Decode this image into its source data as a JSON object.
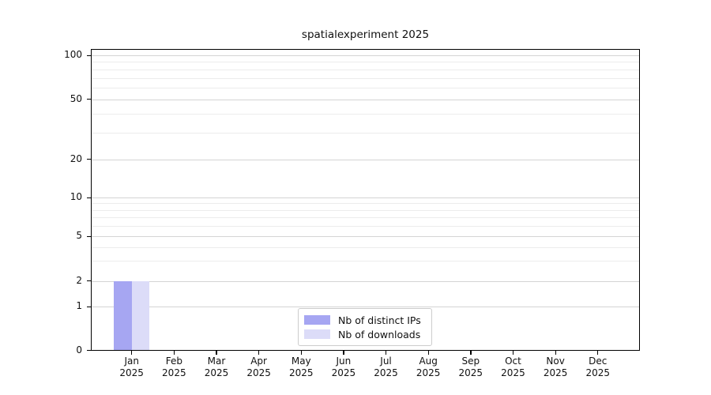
{
  "chart_data": {
    "type": "bar",
    "title": "spatialexperiment 2025",
    "categories": [
      "Jan",
      "Feb",
      "Mar",
      "Apr",
      "May",
      "Jun",
      "Jul",
      "Aug",
      "Sep",
      "Oct",
      "Nov",
      "Dec"
    ],
    "x_sublabel": "2025",
    "series": [
      {
        "name": "Nb of distinct IPs",
        "color": "#a6a6f2",
        "values": [
          2,
          0,
          0,
          0,
          0,
          0,
          0,
          0,
          0,
          0,
          0,
          0
        ]
      },
      {
        "name": "Nb of downloads",
        "color": "#dcdcf8",
        "values": [
          2,
          0,
          0,
          0,
          0,
          0,
          0,
          0,
          0,
          0,
          0,
          0
        ]
      }
    ],
    "xlabel": "",
    "ylabel": "",
    "y_axis": {
      "scale": "log-like with linear segment to 0",
      "major_ticks": [
        0,
        1,
        2,
        5,
        10,
        20,
        50,
        100
      ],
      "minor_gridlines": [
        3,
        4,
        6,
        7,
        8,
        9,
        30,
        40,
        60,
        70,
        80,
        90
      ],
      "range": [
        0,
        110
      ]
    },
    "grid": "horizontal",
    "legend_position": "bottom-center",
    "colors": {
      "major_gridline": "#d4d4d4",
      "minor_gridline": "#ececec",
      "spine": "#000000",
      "background": "#ffffff"
    }
  }
}
